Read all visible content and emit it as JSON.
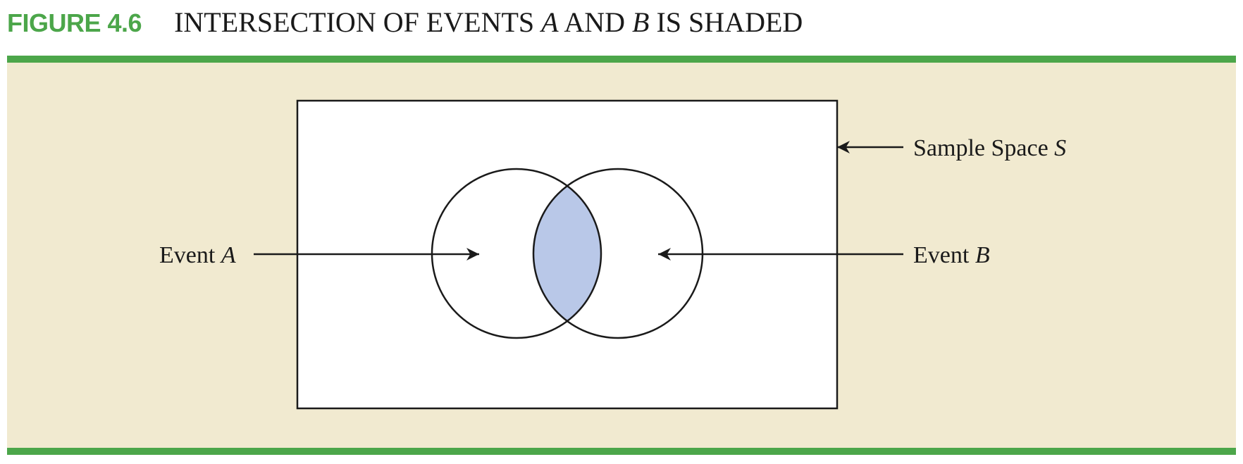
{
  "figure": {
    "label": "FIGURE 4.6",
    "title_parts": [
      "INTERSECTION OF EVENTS ",
      "A",
      " AND ",
      "B",
      " IS SHADED"
    ]
  },
  "diagram": {
    "sample_space_label": [
      "Sample Space ",
      "S"
    ],
    "event_a_label": [
      "Event ",
      "A"
    ],
    "event_b_label": [
      "Event ",
      "B"
    ]
  },
  "colors": {
    "accent": "#4ca64a",
    "panel_background": "#f1ead0",
    "intersection_fill": "#b9c8e8",
    "stroke": "#1a1a1a"
  }
}
